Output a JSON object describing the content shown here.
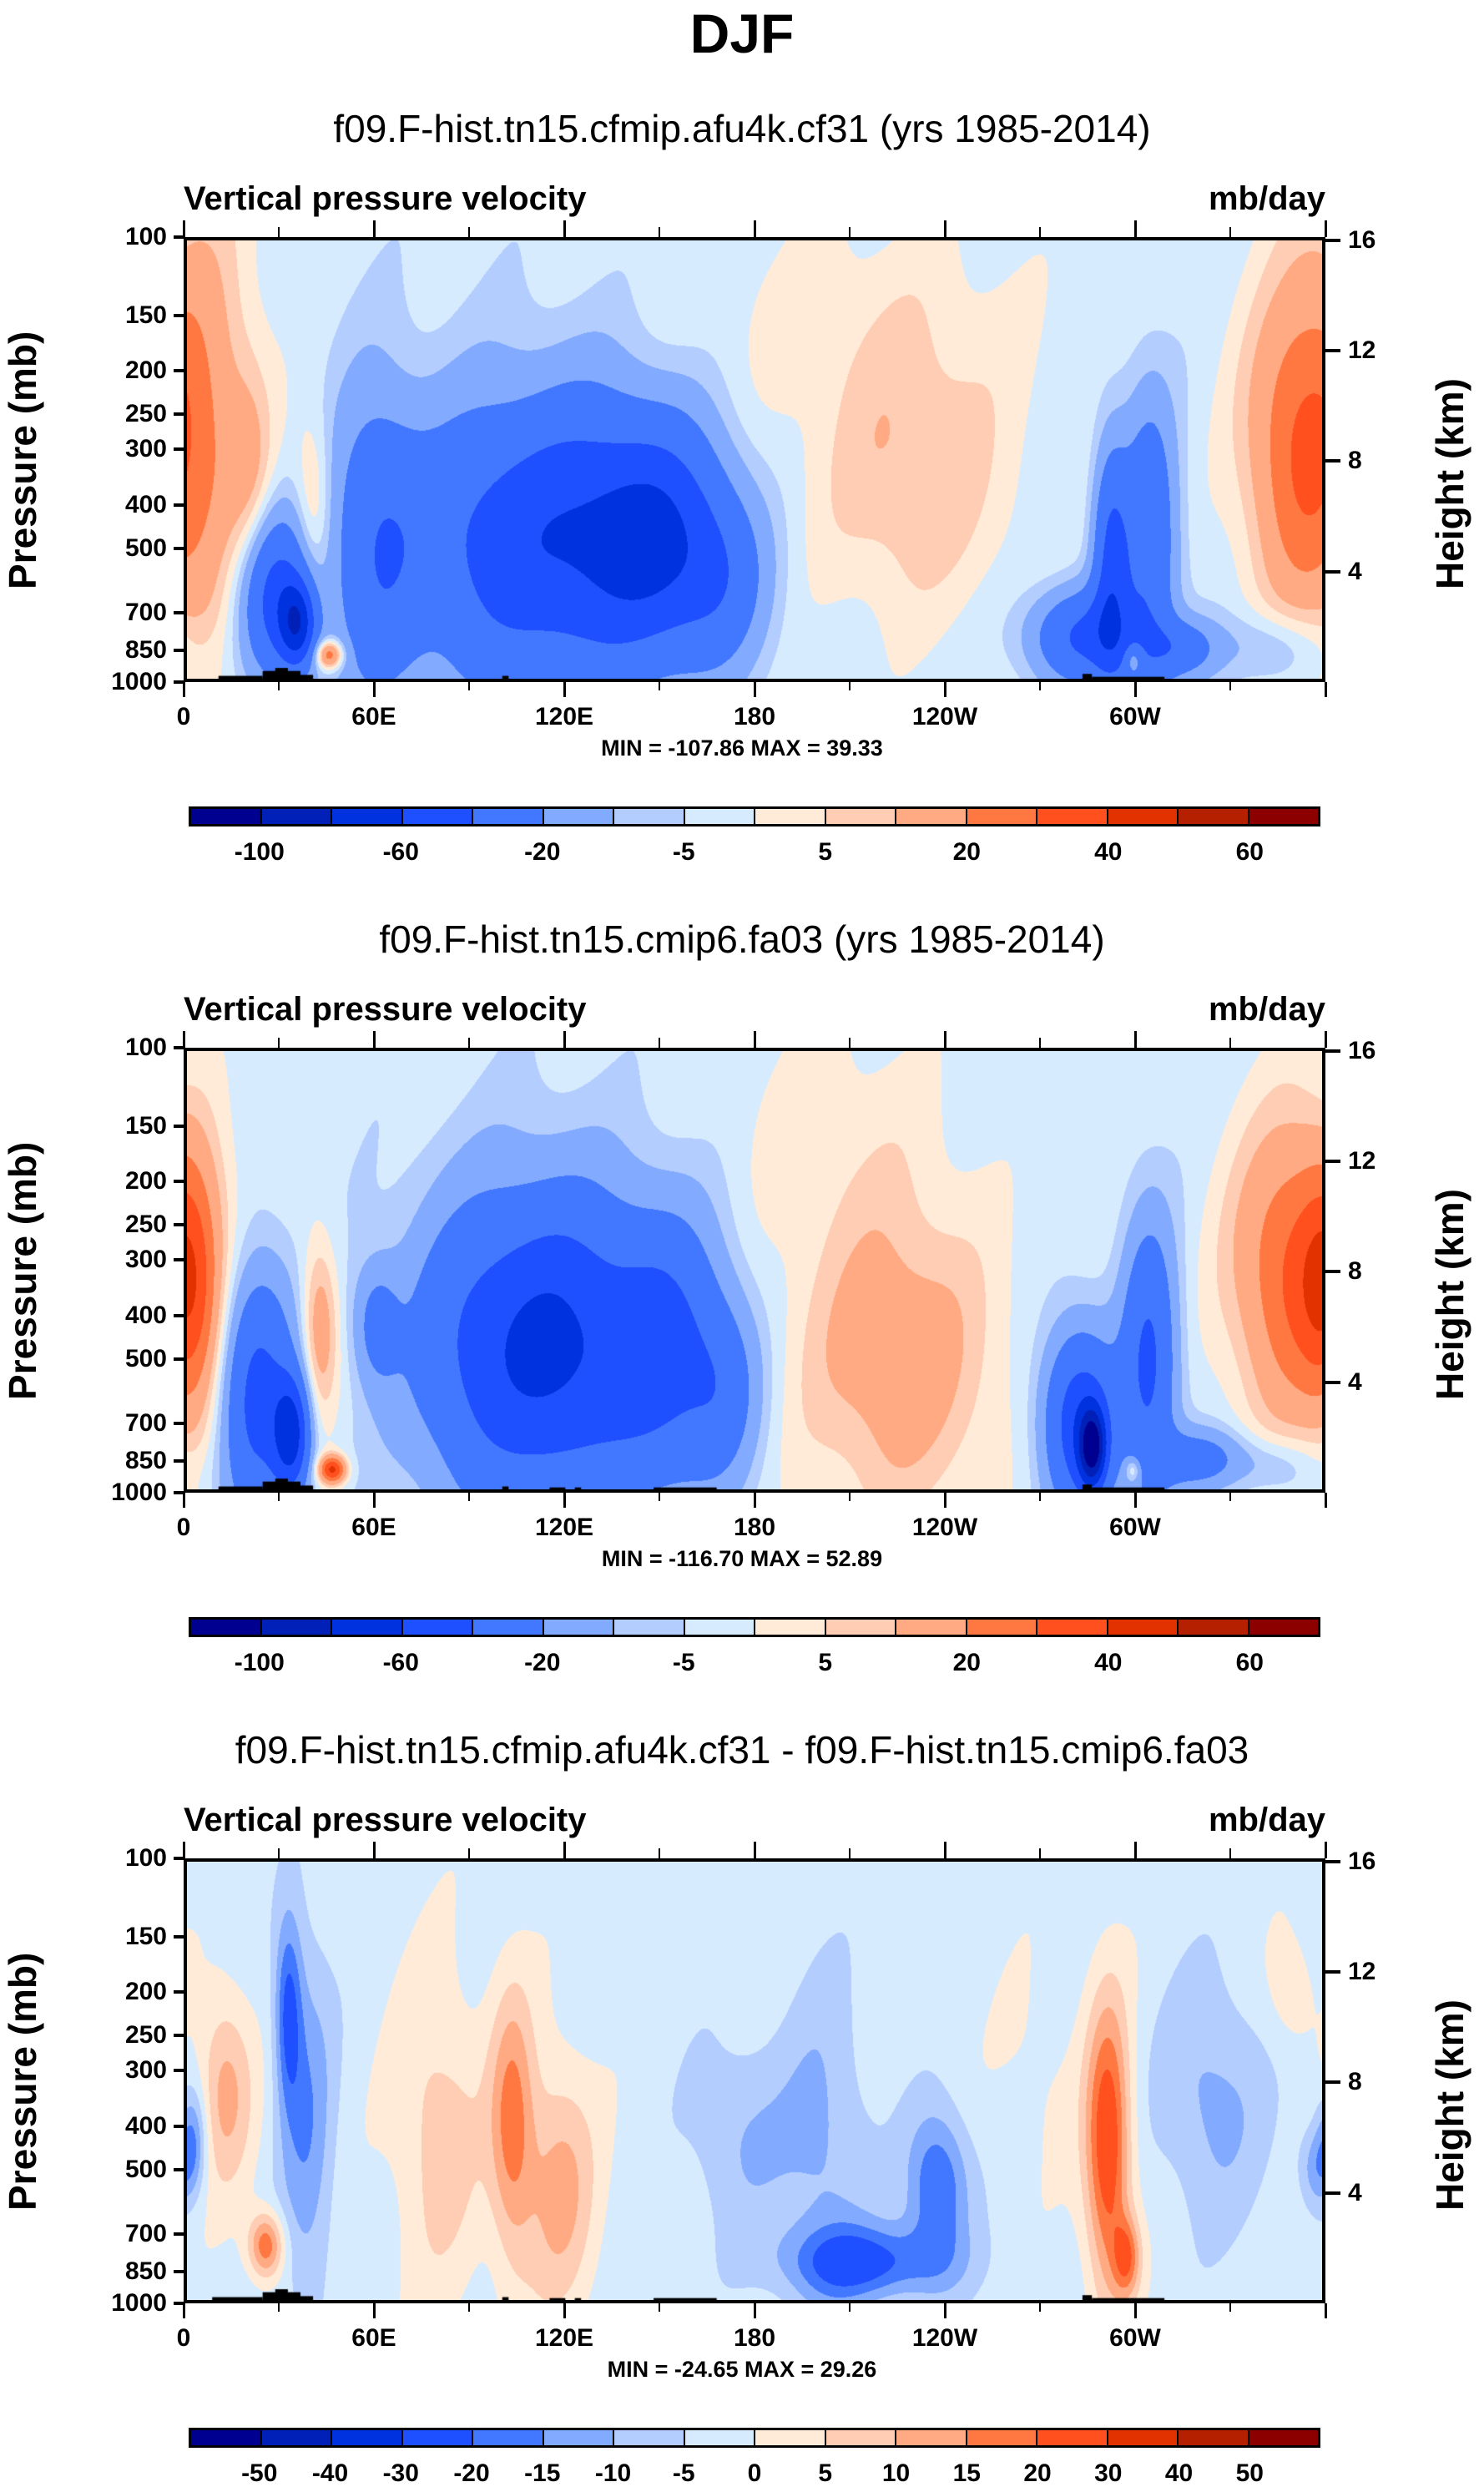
{
  "figure": {
    "title": "DJF"
  },
  "colors": {
    "palette": [
      "#000090",
      "#0020B8",
      "#0032E0",
      "#1E50FF",
      "#4278FF",
      "#82AAFF",
      "#B4CDFF",
      "#D7EBFF",
      "#FFEBD7",
      "#FFCDB4",
      "#FFAA82",
      "#FF7842",
      "#FF501E",
      "#E13200",
      "#B42000",
      "#8C0000"
    ],
    "topography": "#000000"
  },
  "chart_data": [
    {
      "type": "heatmap",
      "subtype": "filled-contour-cross-section",
      "title": "f09.F-hist.tn15.cfmip.afu4k.cf31 (yrs 1985-2014)",
      "left_string": "Vertical pressure velocity",
      "right_string": "mb/day",
      "xlabel": "",
      "ylabel": "Pressure (mb)",
      "ylabel_right": "Height (km)",
      "xlim": [
        0,
        360
      ],
      "ylim": [
        1000,
        100
      ],
      "x_ticks": [
        {
          "value": 0,
          "label": "0"
        },
        {
          "value": 60,
          "label": "60E"
        },
        {
          "value": 120,
          "label": "120E"
        },
        {
          "value": 180,
          "label": "180"
        },
        {
          "value": 240,
          "label": "120W"
        },
        {
          "value": 300,
          "label": "60W"
        }
      ],
      "x_minor_step": 30,
      "y_ticks": [
        {
          "value": 100,
          "label": "100"
        },
        {
          "value": 150,
          "label": "150"
        },
        {
          "value": 200,
          "label": "200"
        },
        {
          "value": 250,
          "label": "250"
        },
        {
          "value": 300,
          "label": "300"
        },
        {
          "value": 400,
          "label": "400"
        },
        {
          "value": 500,
          "label": "500"
        },
        {
          "value": 700,
          "label": "700"
        },
        {
          "value": 850,
          "label": "850"
        },
        {
          "value": 1000,
          "label": "1000"
        }
      ],
      "y_ticks_right": [
        {
          "height_km": 16,
          "label": "16"
        },
        {
          "height_km": 12,
          "label": "12"
        },
        {
          "height_km": 8,
          "label": "8"
        },
        {
          "height_km": 4,
          "label": "4"
        }
      ],
      "stats": "MIN = -107.86  MAX =  39.33",
      "min": -107.86,
      "max": 39.33,
      "levels": [
        -100,
        -80,
        -60,
        -40,
        -20,
        -10,
        -5,
        0,
        5,
        10,
        20,
        30,
        40,
        50,
        60
      ],
      "colorbar_labels": [
        {
          "index": 0,
          "label": "-100"
        },
        {
          "index": 2,
          "label": "-60"
        },
        {
          "index": 4,
          "label": "-20"
        },
        {
          "index": 6,
          "label": "-5"
        },
        {
          "index": 8,
          "label": "5"
        },
        {
          "index": 10,
          "label": "20"
        },
        {
          "index": 12,
          "label": "40"
        },
        {
          "index": 14,
          "label": "60"
        }
      ],
      "background_value": -3,
      "features": [
        {
          "lon": 5,
          "p": 250,
          "dlon": 12,
          "dp": 280,
          "value": 14
        },
        {
          "lon": 20,
          "p": 350,
          "dlon": 5,
          "dp": 180,
          "value": 10
        },
        {
          "lon": 28,
          "p": 650,
          "dlon": 8,
          "dp": 250,
          "value": -45
        },
        {
          "lon": 35,
          "p": 750,
          "dlon": 4,
          "dp": 150,
          "value": -55
        },
        {
          "lon": 40,
          "p": 420,
          "dlon": 4,
          "dp": 180,
          "value": 14
        },
        {
          "lon": 45,
          "p": 880,
          "dlon": 3,
          "dp": 60,
          "value": 35
        },
        {
          "lon": 60,
          "p": 500,
          "dlon": 10,
          "dp": 350,
          "value": -30
        },
        {
          "lon": 95,
          "p": 500,
          "dlon": 20,
          "dp": 330,
          "value": -35
        },
        {
          "lon": 125,
          "p": 480,
          "dlon": 18,
          "dp": 320,
          "value": -38
        },
        {
          "lon": 150,
          "p": 480,
          "dlon": 15,
          "dp": 260,
          "value": -50
        },
        {
          "lon": 170,
          "p": 600,
          "dlon": 10,
          "dp": 250,
          "value": -20
        },
        {
          "lon": 125,
          "p": 920,
          "dlon": 4,
          "dp": 50,
          "value": 8
        },
        {
          "lon": 230,
          "p": 350,
          "dlon": 22,
          "dp": 220,
          "value": 13
        },
        {
          "lon": 215,
          "p": 150,
          "dlon": 40,
          "dp": 80,
          "value": 5
        },
        {
          "lon": 285,
          "p": 800,
          "dlon": 12,
          "dp": 180,
          "value": -40
        },
        {
          "lon": 293,
          "p": 550,
          "dlon": 4,
          "dp": 300,
          "value": -40
        },
        {
          "lon": 305,
          "p": 500,
          "dlon": 6,
          "dp": 330,
          "value": -35
        },
        {
          "lon": 300,
          "p": 900,
          "dlon": 2,
          "dp": 60,
          "value": 20
        },
        {
          "lon": 315,
          "p": 850,
          "dlon": 8,
          "dp": 120,
          "value": -25
        },
        {
          "lon": 352,
          "p": 300,
          "dlon": 12,
          "dp": 220,
          "value": 28
        },
        {
          "lon": 345,
          "p": 850,
          "dlon": 12,
          "dp": 150,
          "value": -12
        }
      ],
      "topography": [
        {
          "lon_start": 10,
          "lon_end": 24,
          "p_top": 985
        },
        {
          "lon_start": 24,
          "lon_end": 36,
          "p_top": 960
        },
        {
          "lon_start": 28,
          "lon_end": 32,
          "p_top": 945
        },
        {
          "lon_start": 36,
          "lon_end": 40,
          "p_top": 980
        },
        {
          "lon_start": 100,
          "lon_end": 102,
          "p_top": 985
        },
        {
          "lon_start": 284,
          "lon_end": 287,
          "p_top": 975
        },
        {
          "lon_start": 287,
          "lon_end": 310,
          "p_top": 990
        }
      ]
    },
    {
      "type": "heatmap",
      "subtype": "filled-contour-cross-section",
      "title": "f09.F-hist.tn15.cmip6.fa03 (yrs 1985-2014)",
      "left_string": "Vertical pressure velocity",
      "right_string": "mb/day",
      "xlabel": "",
      "ylabel": "Pressure (mb)",
      "ylabel_right": "Height (km)",
      "xlim": [
        0,
        360
      ],
      "ylim": [
        1000,
        100
      ],
      "x_ticks": [
        {
          "value": 0,
          "label": "0"
        },
        {
          "value": 60,
          "label": "60E"
        },
        {
          "value": 120,
          "label": "120E"
        },
        {
          "value": 180,
          "label": "180"
        },
        {
          "value": 240,
          "label": "120W"
        },
        {
          "value": 300,
          "label": "60W"
        }
      ],
      "x_minor_step": 30,
      "y_ticks": [
        {
          "value": 100,
          "label": "100"
        },
        {
          "value": 150,
          "label": "150"
        },
        {
          "value": 200,
          "label": "200"
        },
        {
          "value": 250,
          "label": "250"
        },
        {
          "value": 300,
          "label": "300"
        },
        {
          "value": 400,
          "label": "400"
        },
        {
          "value": 500,
          "label": "500"
        },
        {
          "value": 700,
          "label": "700"
        },
        {
          "value": 850,
          "label": "850"
        },
        {
          "value": 1000,
          "label": "1000"
        }
      ],
      "y_ticks_right": [
        {
          "height_km": 16,
          "label": "16"
        },
        {
          "height_km": 12,
          "label": "12"
        },
        {
          "height_km": 8,
          "label": "8"
        },
        {
          "height_km": 4,
          "label": "4"
        }
      ],
      "stats": "MIN = -116.70  MAX =  52.89",
      "min": -116.7,
      "max": 52.89,
      "levels": [
        -100,
        -80,
        -60,
        -40,
        -20,
        -10,
        -5,
        0,
        5,
        10,
        20,
        30,
        40,
        50,
        60
      ],
      "colorbar_labels": [
        {
          "index": 0,
          "label": "-100"
        },
        {
          "index": 2,
          "label": "-60"
        },
        {
          "index": 4,
          "label": "-20"
        },
        {
          "index": 6,
          "label": "-5"
        },
        {
          "index": 8,
          "label": "5"
        },
        {
          "index": 10,
          "label": "20"
        },
        {
          "index": 12,
          "label": "40"
        },
        {
          "index": 14,
          "label": "60"
        }
      ],
      "background_value": -3,
      "features": [
        {
          "lon": 2,
          "p": 350,
          "dlon": 6,
          "dp": 200,
          "value": 20
        },
        {
          "lon": 22,
          "p": 600,
          "dlon": 8,
          "dp": 350,
          "value": -45
        },
        {
          "lon": 33,
          "p": 750,
          "dlon": 4,
          "dp": 200,
          "value": -60
        },
        {
          "lon": 42,
          "p": 430,
          "dlon": 4,
          "dp": 180,
          "value": 20
        },
        {
          "lon": 46,
          "p": 900,
          "dlon": 3,
          "dp": 60,
          "value": 45
        },
        {
          "lon": 60,
          "p": 420,
          "dlon": 5,
          "dp": 120,
          "value": -20
        },
        {
          "lon": 95,
          "p": 480,
          "dlon": 18,
          "dp": 330,
          "value": -40
        },
        {
          "lon": 120,
          "p": 470,
          "dlon": 15,
          "dp": 330,
          "value": -42
        },
        {
          "lon": 150,
          "p": 480,
          "dlon": 14,
          "dp": 300,
          "value": -45
        },
        {
          "lon": 170,
          "p": 600,
          "dlon": 8,
          "dp": 250,
          "value": -20
        },
        {
          "lon": 225,
          "p": 500,
          "dlon": 22,
          "dp": 360,
          "value": 19
        },
        {
          "lon": 205,
          "p": 150,
          "dlon": 25,
          "dp": 90,
          "value": 5
        },
        {
          "lon": 283,
          "p": 700,
          "dlon": 8,
          "dp": 300,
          "value": -50
        },
        {
          "lon": 287,
          "p": 800,
          "dlon": 3,
          "dp": 150,
          "value": -80
        },
        {
          "lon": 305,
          "p": 520,
          "dlon": 6,
          "dp": 330,
          "value": -40
        },
        {
          "lon": 300,
          "p": 900,
          "dlon": 2,
          "dp": 60,
          "value": 20
        },
        {
          "lon": 320,
          "p": 850,
          "dlon": 10,
          "dp": 120,
          "value": -25
        },
        {
          "lon": 352,
          "p": 320,
          "dlon": 14,
          "dp": 220,
          "value": 35
        },
        {
          "lon": 345,
          "p": 880,
          "dlon": 10,
          "dp": 120,
          "value": -10
        }
      ],
      "topography": [
        {
          "lon_start": 10,
          "lon_end": 24,
          "p_top": 985
        },
        {
          "lon_start": 24,
          "lon_end": 36,
          "p_top": 960
        },
        {
          "lon_start": 28,
          "lon_end": 32,
          "p_top": 945
        },
        {
          "lon_start": 36,
          "lon_end": 40,
          "p_top": 980
        },
        {
          "lon_start": 100,
          "lon_end": 102,
          "p_top": 985
        },
        {
          "lon_start": 115,
          "lon_end": 120,
          "p_top": 990
        },
        {
          "lon_start": 123,
          "lon_end": 125,
          "p_top": 990
        },
        {
          "lon_start": 148,
          "lon_end": 168,
          "p_top": 990
        },
        {
          "lon_start": 284,
          "lon_end": 287,
          "p_top": 975
        },
        {
          "lon_start": 287,
          "lon_end": 310,
          "p_top": 990
        }
      ]
    },
    {
      "type": "heatmap",
      "subtype": "filled-contour-cross-section",
      "title": "f09.F-hist.tn15.cfmip.afu4k.cf31 - f09.F-hist.tn15.cmip6.fa03",
      "left_string": "Vertical pressure velocity",
      "right_string": "mb/day",
      "xlabel": "",
      "ylabel": "Pressure (mb)",
      "ylabel_right": "Height (km)",
      "xlim": [
        0,
        360
      ],
      "ylim": [
        1000,
        100
      ],
      "x_ticks": [
        {
          "value": 0,
          "label": "0"
        },
        {
          "value": 60,
          "label": "60E"
        },
        {
          "value": 120,
          "label": "120E"
        },
        {
          "value": 180,
          "label": "180"
        },
        {
          "value": 240,
          "label": "120W"
        },
        {
          "value": 300,
          "label": "60W"
        }
      ],
      "x_minor_step": 30,
      "y_ticks": [
        {
          "value": 100,
          "label": "100"
        },
        {
          "value": 150,
          "label": "150"
        },
        {
          "value": 200,
          "label": "200"
        },
        {
          "value": 250,
          "label": "250"
        },
        {
          "value": 300,
          "label": "300"
        },
        {
          "value": 400,
          "label": "400"
        },
        {
          "value": 500,
          "label": "500"
        },
        {
          "value": 700,
          "label": "700"
        },
        {
          "value": 850,
          "label": "850"
        },
        {
          "value": 1000,
          "label": "1000"
        }
      ],
      "y_ticks_right": [
        {
          "height_km": 16,
          "label": "16"
        },
        {
          "height_km": 12,
          "label": "12"
        },
        {
          "height_km": 8,
          "label": "8"
        },
        {
          "height_km": 4,
          "label": "4"
        }
      ],
      "stats": "MIN = -24.65  MAX = 29.26",
      "min": -24.65,
      "max": 29.26,
      "levels": [
        -50,
        -40,
        -30,
        -20,
        -15,
        -10,
        -5,
        0,
        5,
        10,
        15,
        20,
        30,
        40,
        50
      ],
      "colorbar_labels": [
        {
          "index": 0,
          "label": "-50"
        },
        {
          "index": 1,
          "label": "-40"
        },
        {
          "index": 2,
          "label": "-30"
        },
        {
          "index": 3,
          "label": "-20"
        },
        {
          "index": 4,
          "label": "-15"
        },
        {
          "index": 5,
          "label": "-10"
        },
        {
          "index": 6,
          "label": "-5"
        },
        {
          "index": 7,
          "label": "0"
        },
        {
          "index": 8,
          "label": "5"
        },
        {
          "index": 9,
          "label": "10"
        },
        {
          "index": 10,
          "label": "15"
        },
        {
          "index": 11,
          "label": "20"
        },
        {
          "index": 12,
          "label": "30"
        },
        {
          "index": 13,
          "label": "40"
        },
        {
          "index": 14,
          "label": "50"
        }
      ],
      "background_value": -2,
      "features": [
        {
          "lon": 12,
          "p": 330,
          "dlon": 6,
          "dp": 150,
          "value": 14
        },
        {
          "lon": 25,
          "p": 750,
          "dlon": 4,
          "dp": 120,
          "value": 22
        },
        {
          "lon": 2,
          "p": 420,
          "dlon": 3,
          "dp": 100,
          "value": -12
        },
        {
          "lon": 38,
          "p": 400,
          "dlon": 6,
          "dp": 350,
          "value": -12
        },
        {
          "lon": 32,
          "p": 220,
          "dlon": 3,
          "dp": 100,
          "value": -18
        },
        {
          "lon": 80,
          "p": 420,
          "dlon": 10,
          "dp": 300,
          "value": 10
        },
        {
          "lon": 103,
          "p": 400,
          "dlon": 5,
          "dp": 250,
          "value": 18
        },
        {
          "lon": 118,
          "p": 550,
          "dlon": 8,
          "dp": 320,
          "value": 14
        },
        {
          "lon": 175,
          "p": 420,
          "dlon": 12,
          "dp": 200,
          "value": -8
        },
        {
          "lon": 215,
          "p": 820,
          "dlon": 18,
          "dp": 150,
          "value": -20
        },
        {
          "lon": 238,
          "p": 550,
          "dlon": 7,
          "dp": 200,
          "value": -19
        },
        {
          "lon": 202,
          "p": 450,
          "dlon": 10,
          "dp": 350,
          "value": -9
        },
        {
          "lon": 270,
          "p": 300,
          "dlon": 10,
          "dp": 150,
          "value": 3
        },
        {
          "lon": 292,
          "p": 450,
          "dlon": 5,
          "dp": 300,
          "value": 28
        },
        {
          "lon": 298,
          "p": 800,
          "dlon": 3,
          "dp": 150,
          "value": 18
        },
        {
          "lon": 325,
          "p": 350,
          "dlon": 12,
          "dp": 200,
          "value": -10
        },
        {
          "lon": 350,
          "p": 200,
          "dlon": 6,
          "dp": 60,
          "value": 6
        },
        {
          "lon": 358,
          "p": 500,
          "dlon": 4,
          "dp": 100,
          "value": -11
        }
      ],
      "topography": [
        {
          "lon_start": 8,
          "lon_end": 24,
          "p_top": 985
        },
        {
          "lon_start": 24,
          "lon_end": 36,
          "p_top": 960
        },
        {
          "lon_start": 28,
          "lon_end": 32,
          "p_top": 945
        },
        {
          "lon_start": 36,
          "lon_end": 40,
          "p_top": 980
        },
        {
          "lon_start": 100,
          "lon_end": 102,
          "p_top": 985
        },
        {
          "lon_start": 115,
          "lon_end": 120,
          "p_top": 990
        },
        {
          "lon_start": 123,
          "lon_end": 125,
          "p_top": 990
        },
        {
          "lon_start": 148,
          "lon_end": 168,
          "p_top": 990
        },
        {
          "lon_start": 284,
          "lon_end": 287,
          "p_top": 975
        },
        {
          "lon_start": 287,
          "lon_end": 310,
          "p_top": 990
        }
      ]
    }
  ]
}
